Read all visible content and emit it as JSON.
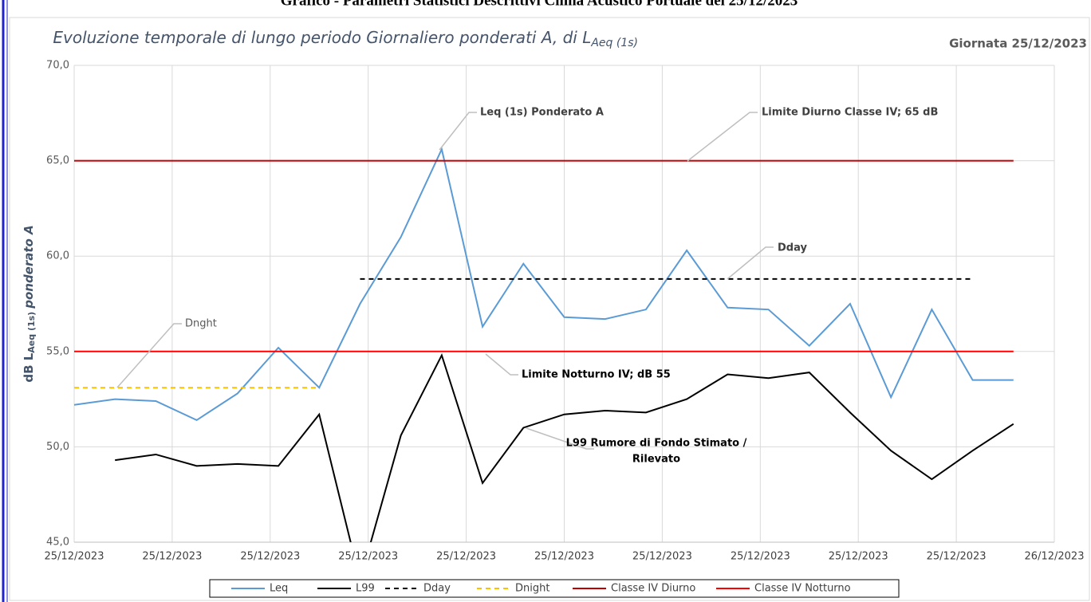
{
  "header": "Grafico - Parametri Statistici Descrittivi Clima Acustico Portuale del 25/12/2023",
  "chart_data": {
    "type": "line",
    "title": "Evoluzione temporale di lungo periodo Giornaliero ponderati A, di L",
    "title_subscript": "Aeq (1s)",
    "subtitle": "Giornata 25/12/2023",
    "y_label": "dB L",
    "y_label_subscript": "Aeq (1s)",
    "y_label_end": "ponderato A",
    "xlim": [
      0,
      24
    ],
    "xticks": [
      {
        "value": 0,
        "label": "25/12/2023"
      },
      {
        "value": 2.4,
        "label": "25/12/2023"
      },
      {
        "value": 4.8,
        "label": "25/12/2023"
      },
      {
        "value": 7.2,
        "label": "25/12/2023"
      },
      {
        "value": 9.6,
        "label": "25/12/2023"
      },
      {
        "value": 12,
        "label": "25/12/2023"
      },
      {
        "value": 14.4,
        "label": "25/12/2023"
      },
      {
        "value": 16.8,
        "label": "25/12/2023"
      },
      {
        "value": 19.2,
        "label": "25/12/2023"
      },
      {
        "value": 21.6,
        "label": "25/12/2023"
      },
      {
        "value": 24,
        "label": "26/12/2023"
      }
    ],
    "ylim": [
      45,
      70
    ],
    "yticks": [
      {
        "value": 45,
        "label": "45,0"
      },
      {
        "value": 50,
        "label": "50,0"
      },
      {
        "value": 55,
        "label": "55,0"
      },
      {
        "value": 60,
        "label": "60,0"
      },
      {
        "value": 65,
        "label": "65,0"
      },
      {
        "value": 70,
        "label": "70,0"
      }
    ],
    "grid": true,
    "legend": "bottom",
    "series": [
      {
        "name": "Leq",
        "color": "#5b9bd5",
        "dash": false,
        "x": [
          0,
          1,
          2,
          3,
          4,
          5,
          6,
          7,
          8,
          9,
          10,
          11,
          12,
          13,
          14,
          15,
          16,
          17,
          18,
          19,
          20,
          21,
          22,
          23
        ],
        "values": [
          52.2,
          52.5,
          52.4,
          51.4,
          52.8,
          55.2,
          53.1,
          57.5,
          61.0,
          65.6,
          56.3,
          59.6,
          56.8,
          56.7,
          57.2,
          60.3,
          57.3,
          57.2,
          55.3,
          57.5,
          52.6,
          57.2,
          53.5,
          53.5
        ]
      },
      {
        "name": "L99",
        "color": "#000000",
        "dash": false,
        "x": [
          0,
          1,
          2,
          3,
          4,
          5,
          6,
          7,
          8,
          9,
          10,
          11,
          12,
          13,
          14,
          15,
          16,
          17,
          18,
          19,
          20,
          21,
          22,
          23
        ],
        "values": [
          null,
          49.3,
          49.6,
          49.0,
          49.1,
          49.0,
          51.7,
          43.0,
          50.6,
          54.8,
          48.1,
          51.0,
          51.7,
          51.9,
          51.8,
          52.5,
          53.8,
          53.6,
          53.9,
          51.8,
          49.8,
          48.3,
          49.8,
          51.2
        ]
      },
      {
        "name": "Dday",
        "color": "#000000",
        "dash": true,
        "x": [
          7,
          22
        ],
        "values": [
          58.8,
          58.8
        ]
      },
      {
        "name": "Dnight",
        "color": "#ffc000",
        "dash": true,
        "x": [
          0,
          6
        ],
        "values": [
          53.1,
          53.1
        ]
      },
      {
        "name": "Classe IV Diurno",
        "color": "#c00000",
        "dash": false,
        "x": [
          0,
          23
        ],
        "values": [
          65,
          65
        ]
      },
      {
        "name": "Classe IV Notturno",
        "color": "#ff0000",
        "dash": false,
        "x": [
          0,
          23
        ],
        "values": [
          55,
          55
        ]
      }
    ],
    "annotations": [
      {
        "text": "Leq (1s) Ponderato A"
      },
      {
        "text": "Limite Diurno Classe IV; 65 dB"
      },
      {
        "text": "Dday"
      },
      {
        "text": "Dnght"
      },
      {
        "text": "Limite Notturno IV; dB 55"
      },
      {
        "text": [
          "L99 Rumore di Fondo Stimato /",
          "Rilevato"
        ]
      }
    ]
  }
}
